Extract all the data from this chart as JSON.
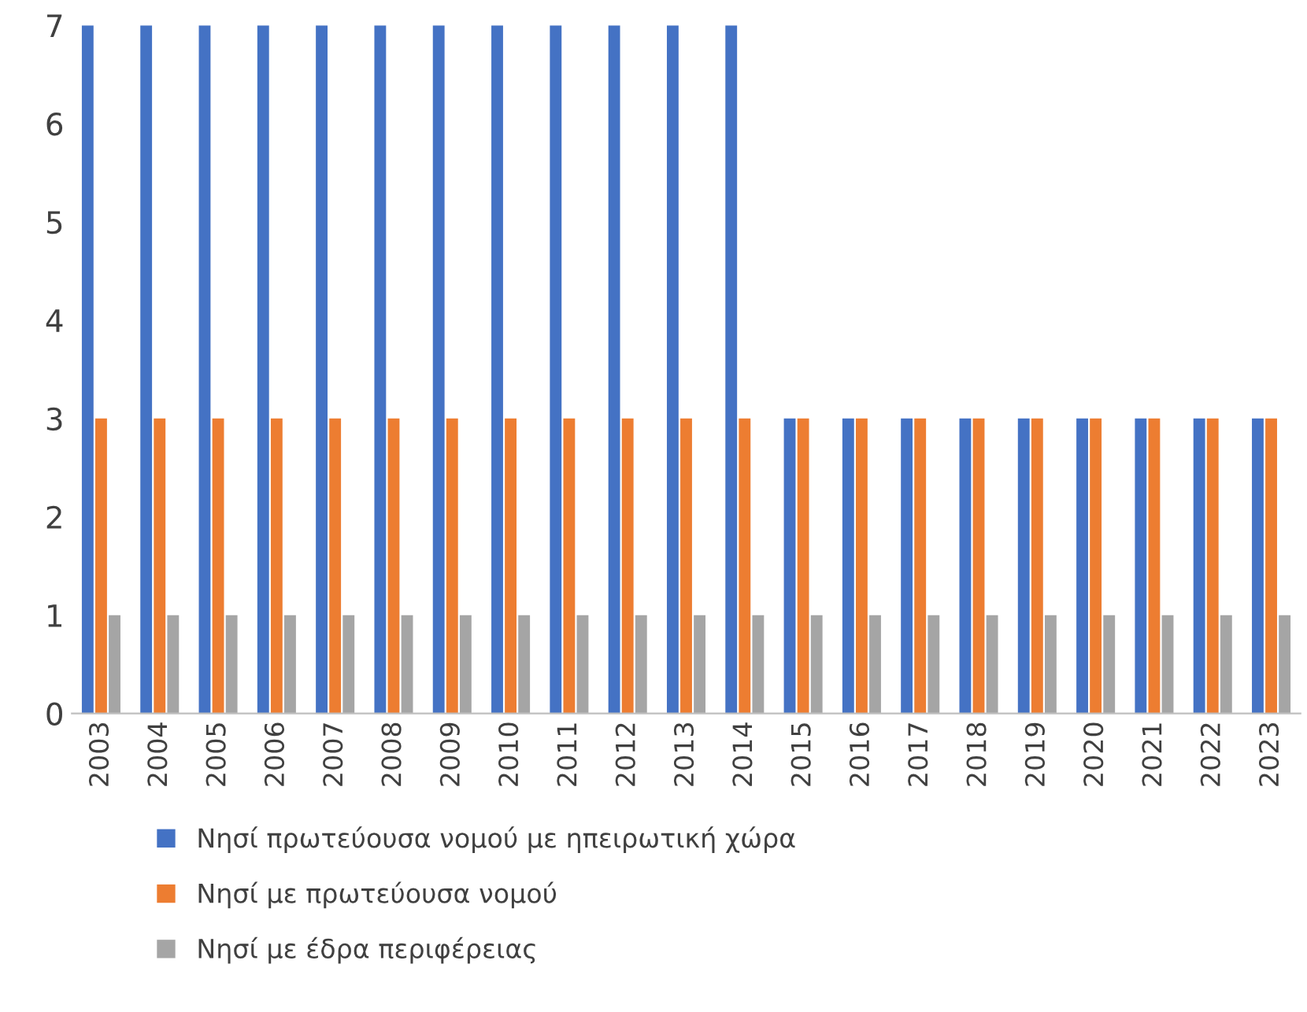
{
  "chart_data": {
    "type": "bar",
    "categories": [
      "2003",
      "2004",
      "2005",
      "2006",
      "2007",
      "2008",
      "2009",
      "2010",
      "2011",
      "2012",
      "2013",
      "2014",
      "2015",
      "2016",
      "2017",
      "2018",
      "2019",
      "2020",
      "2021",
      "2022",
      "2023"
    ],
    "series": [
      {
        "name": "Νησί πρωτεύουσα νομού με ηπειρωτική χώρα",
        "color": "#4472c4",
        "values": [
          7,
          7,
          7,
          7,
          7,
          7,
          7,
          7,
          7,
          7,
          7,
          7,
          3,
          3,
          3,
          3,
          3,
          3,
          3,
          3,
          3
        ]
      },
      {
        "name": "Νησί με πρωτεύουσα νομού",
        "color": "#ed7d31",
        "values": [
          3,
          3,
          3,
          3,
          3,
          3,
          3,
          3,
          3,
          3,
          3,
          3,
          3,
          3,
          3,
          3,
          3,
          3,
          3,
          3,
          3
        ]
      },
      {
        "name": "Νησί με έδρα περιφέρειας",
        "color": "#a5a5a5",
        "values": [
          1,
          1,
          1,
          1,
          1,
          1,
          1,
          1,
          1,
          1,
          1,
          1,
          1,
          1,
          1,
          1,
          1,
          1,
          1,
          1,
          1
        ]
      }
    ],
    "ylim": [
      0,
      7
    ],
    "yticks": [
      0,
      1,
      2,
      3,
      4,
      5,
      6,
      7
    ],
    "grid": false,
    "legend": "bottom"
  }
}
